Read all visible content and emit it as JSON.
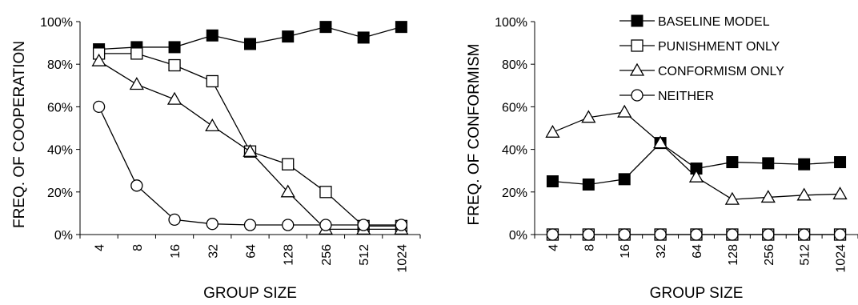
{
  "chart_data": [
    {
      "type": "line",
      "xlabel": "GROUP SIZE",
      "ylabel": "FREQ. OF COOPERATION",
      "categories": [
        "4",
        "8",
        "16",
        "32",
        "64",
        "128",
        "256",
        "512",
        "1024"
      ],
      "y_ticks": [
        "0%",
        "20%",
        "40%",
        "60%",
        "80%",
        "100%"
      ],
      "ylim": [
        0,
        1
      ],
      "grid": false,
      "series": [
        {
          "name": "BASELINE MODEL",
          "marker": "filled-square",
          "values": [
            0.87,
            0.88,
            0.88,
            0.935,
            0.895,
            0.93,
            0.975,
            0.925,
            0.975
          ]
        },
        {
          "name": "PUNISHMENT ONLY",
          "marker": "open-square",
          "values": [
            0.85,
            0.85,
            0.795,
            0.72,
            0.39,
            0.33,
            0.2,
            0.04,
            0.04
          ]
        },
        {
          "name": "CONFORMISM ONLY",
          "marker": "open-triangle",
          "values": [
            0.815,
            0.705,
            0.635,
            0.51,
            0.39,
            0.2,
            0.025,
            0.025,
            0.025
          ]
        },
        {
          "name": "NEITHER",
          "marker": "open-circle",
          "values": [
            0.6,
            0.23,
            0.07,
            0.05,
            0.045,
            0.045,
            0.045,
            0.045,
            0.045
          ]
        }
      ]
    },
    {
      "type": "line",
      "xlabel": "GROUP SIZE",
      "ylabel": "FREQ. OF CONFORMISM",
      "categories": [
        "4",
        "8",
        "16",
        "32",
        "64",
        "128",
        "256",
        "512",
        "1024"
      ],
      "y_ticks": [
        "0%",
        "20%",
        "40%",
        "60%",
        "80%",
        "100%"
      ],
      "ylim": [
        0,
        1
      ],
      "grid": false,
      "legend_position": "top-right",
      "series": [
        {
          "name": "BASELINE MODEL",
          "marker": "filled-square",
          "values": [
            0.25,
            0.235,
            0.26,
            0.43,
            0.31,
            0.34,
            0.335,
            0.33,
            0.34
          ]
        },
        {
          "name": "PUNISHMENT ONLY",
          "marker": "open-square",
          "values": [
            0,
            0,
            0,
            0,
            0,
            0,
            0,
            0,
            0
          ]
        },
        {
          "name": "CONFORMISM ONLY",
          "marker": "open-triangle",
          "values": [
            0.48,
            0.55,
            0.575,
            0.43,
            0.27,
            0.165,
            0.175,
            0.185,
            0.19
          ]
        },
        {
          "name": "NEITHER",
          "marker": "open-circle",
          "values": [
            0,
            0,
            0,
            0,
            0,
            0,
            0,
            0,
            0
          ]
        }
      ]
    }
  ]
}
